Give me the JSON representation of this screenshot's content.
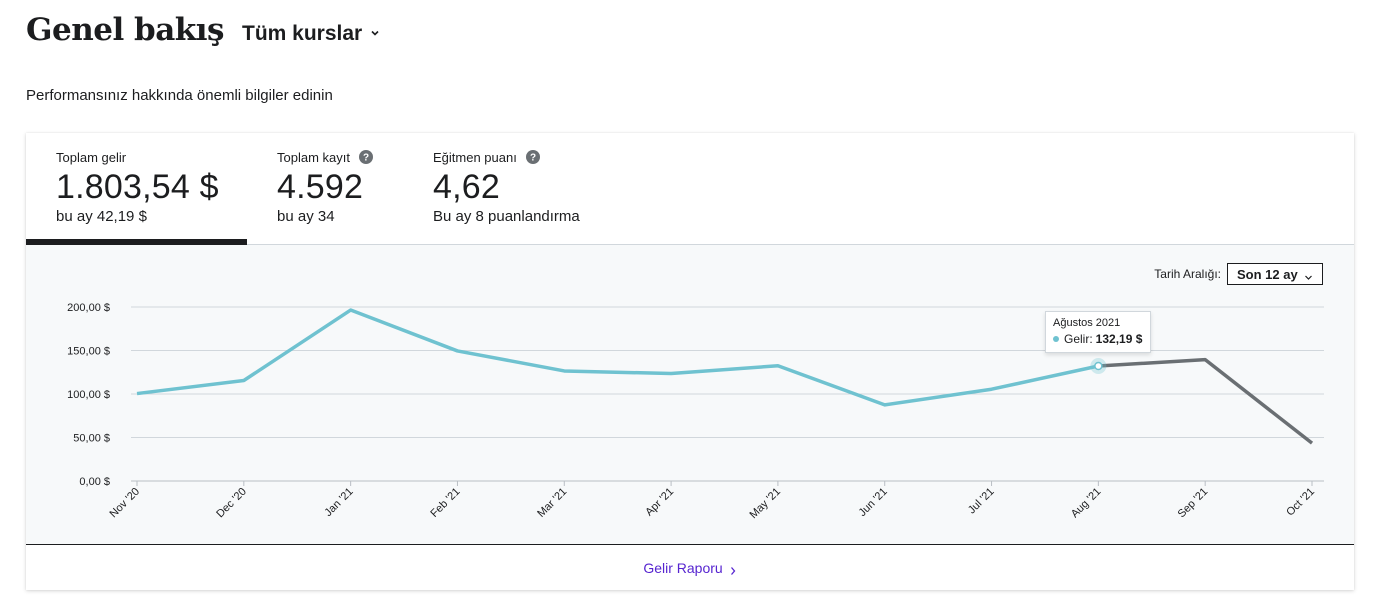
{
  "header": {
    "title": "Genel bakış",
    "course_selector": "Tüm kurslar"
  },
  "subtitle": "Performansınız hakkında önemli bilgiler edinin",
  "stats": [
    {
      "label": "Toplam gelir",
      "value": "1.803,54 $",
      "sub": "bu ay 42,19 $",
      "active": true,
      "help": false
    },
    {
      "label": "Toplam kayıt",
      "value": "4.592",
      "sub": "bu ay 34",
      "active": false,
      "help": true
    },
    {
      "label": "Eğitmen puanı",
      "value": "4,62",
      "sub": "Bu ay 8 puanlandırma",
      "active": false,
      "help": true
    }
  ],
  "date_range": {
    "label": "Tarih Aralığı:",
    "value": "Son 12 ay"
  },
  "tooltip": {
    "title": "Ağustos 2021",
    "series": "Gelir:",
    "value": "132,19 $"
  },
  "footer_link": "Gelir Raporu",
  "colors": {
    "series_line": "#6fc2d0",
    "projection_line": "#6a6f73",
    "active_tab": "#1c1d1f",
    "link": "#5624d0"
  },
  "chart_data": {
    "type": "line",
    "categories": [
      "Nov '20",
      "Dec '20",
      "Jan '21",
      "Feb '21",
      "Mar '21",
      "Apr '21",
      "May '21",
      "Jun '21",
      "Jul '21",
      "Aug '21",
      "Sep '21",
      "Oct '21"
    ],
    "series": [
      {
        "name": "Gelir",
        "values": [
          100.5,
          115.5,
          196.5,
          149.5,
          126.5,
          123.5,
          132.5,
          87.5,
          105.5,
          132.19,
          139.5,
          43.5
        ]
      }
    ],
    "projection_from_index": 9,
    "y_ticks": [
      "0,00 $",
      "50,00 $",
      "100,00 $",
      "150,00 $",
      "200,00 $"
    ],
    "y_tick_values": [
      0,
      50,
      100,
      150,
      200
    ],
    "ylim": [
      0,
      200
    ],
    "grid": true,
    "highlight_index": 9
  }
}
